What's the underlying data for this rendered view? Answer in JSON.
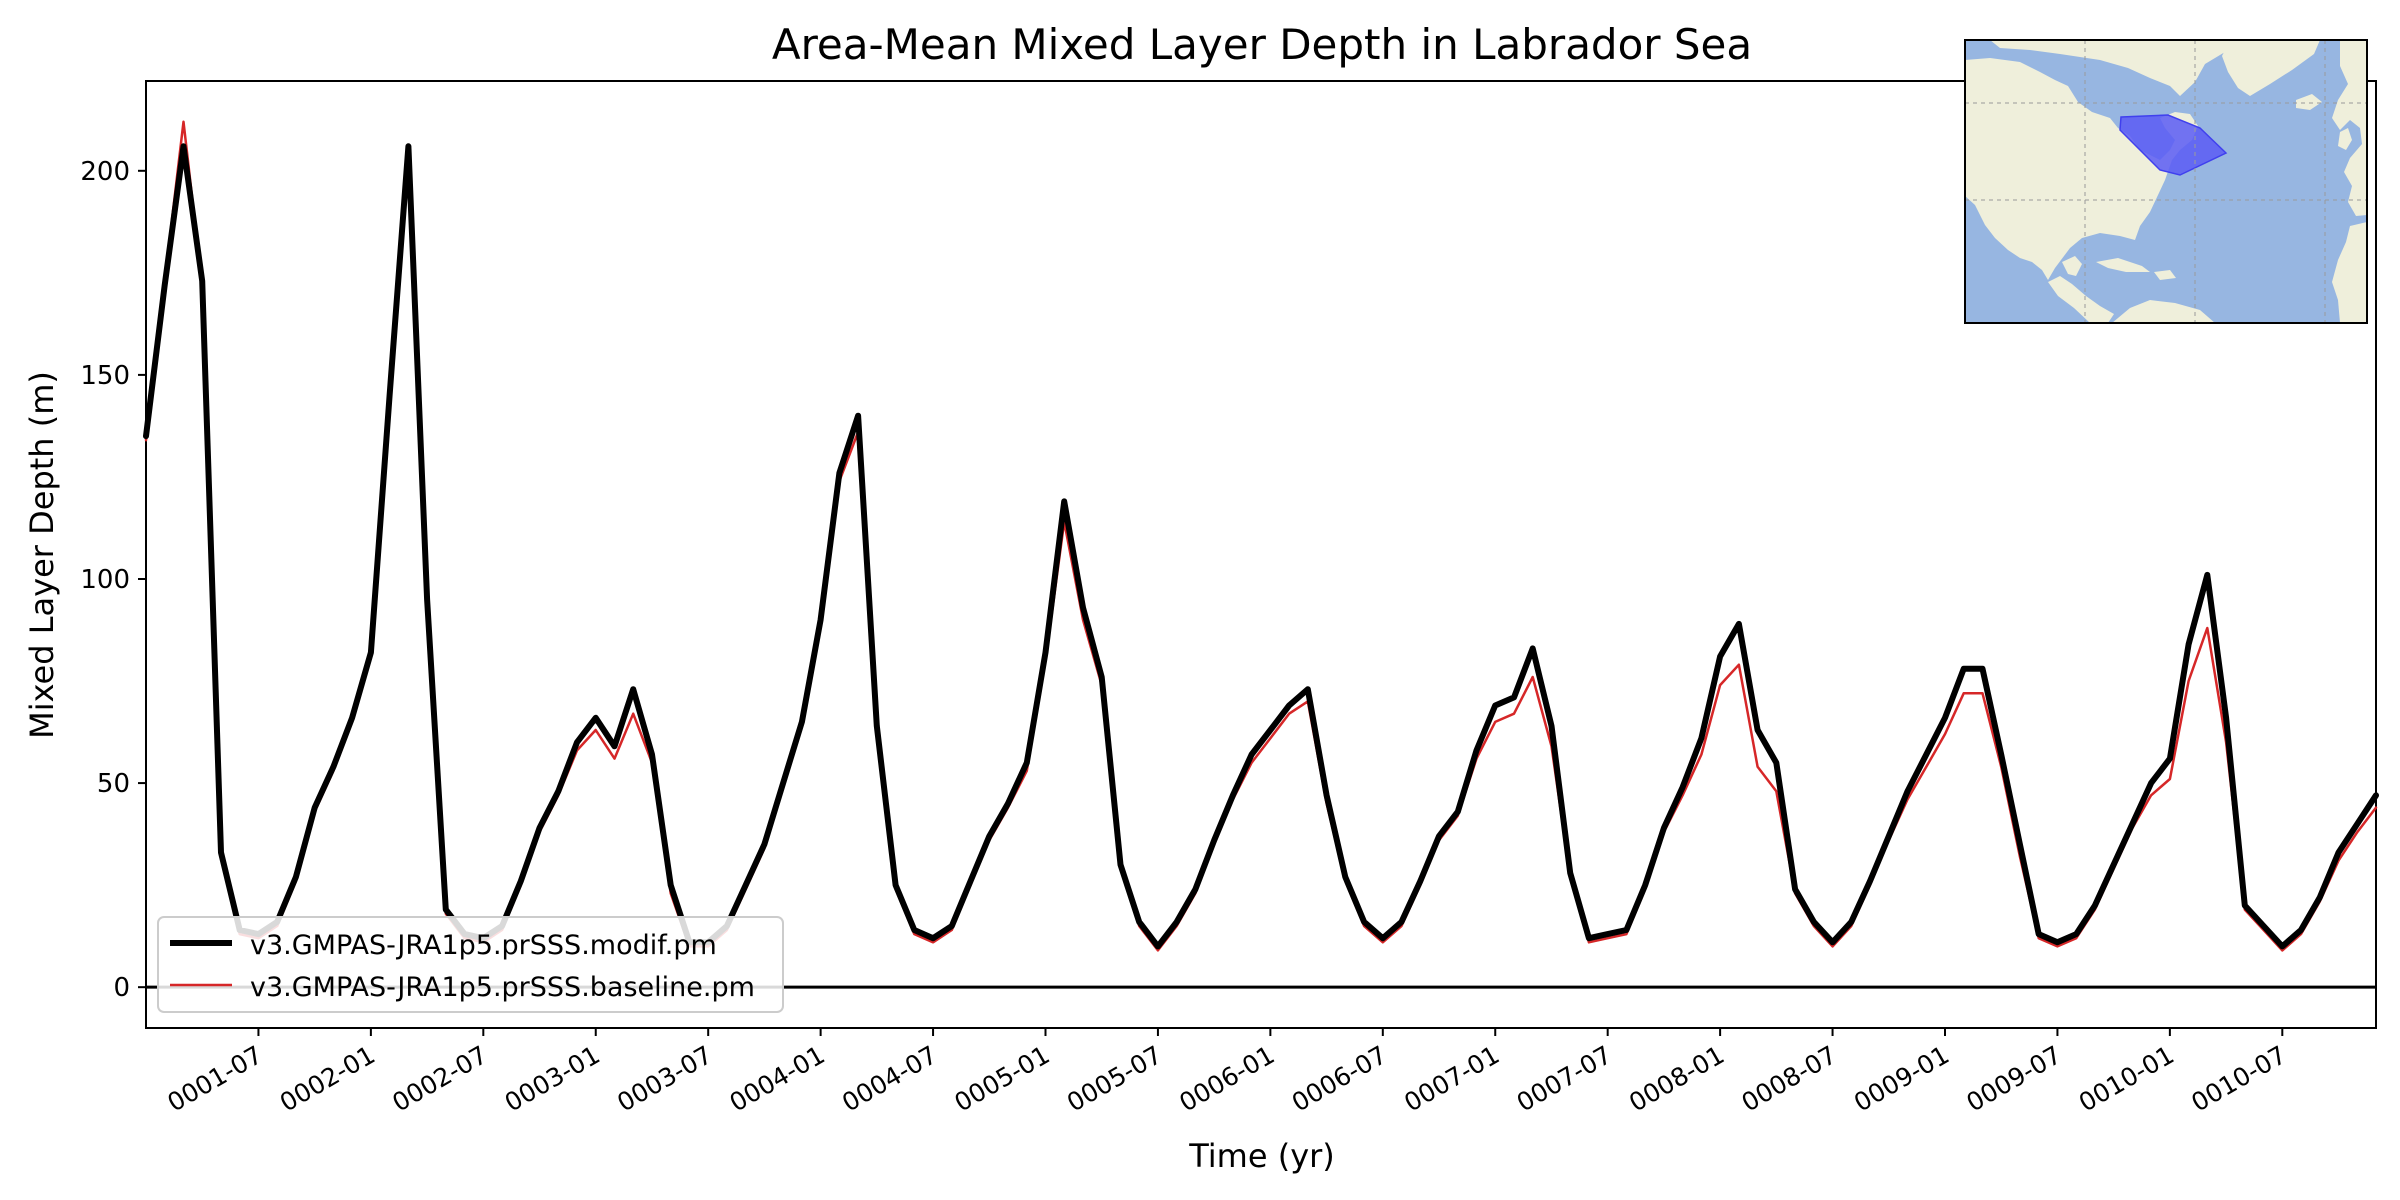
{
  "chart_data": {
    "type": "line",
    "title": "Area-Mean Mixed Layer Depth in Labrador Sea",
    "xlabel": "Time (yr)",
    "ylabel": "Mixed Layer Depth (m)",
    "x_start": "0001-01",
    "x_step": "1 month",
    "xlim": [
      "0001-01",
      "0010-12"
    ],
    "ylim": [
      -10,
      222
    ],
    "yticks": [
      0,
      50,
      100,
      150,
      200
    ],
    "xtick_labels": [
      "0001-07",
      "0002-01",
      "0002-07",
      "0003-01",
      "0003-07",
      "0004-01",
      "0004-07",
      "0005-01",
      "0005-07",
      "0006-01",
      "0006-07",
      "0007-01",
      "0007-07",
      "0008-01",
      "0008-07",
      "0009-01",
      "0009-07",
      "0010-01",
      "0010-07"
    ],
    "zero_line": true,
    "grid": false,
    "legend_position": "lower left",
    "series": [
      {
        "name": "v3.GMPAS-JRA1p5.prSSS.modif.pm",
        "color": "#000000",
        "values": [
          135,
          172,
          206,
          173,
          33,
          14,
          13,
          16,
          27,
          44,
          54,
          66,
          82,
          145,
          206,
          95,
          19,
          13,
          12,
          15,
          26,
          39,
          48,
          60,
          66,
          59,
          73,
          57,
          25,
          11,
          11,
          15,
          25,
          35,
          50,
          65,
          90,
          126,
          140,
          64,
          25,
          14,
          12,
          15,
          26,
          37,
          45,
          55,
          82,
          119,
          93,
          76,
          30,
          16,
          10,
          16,
          24,
          36,
          47,
          57,
          63,
          69,
          73,
          47,
          27,
          16,
          12,
          16,
          26,
          37,
          43,
          58,
          69,
          71,
          83,
          64,
          28,
          12,
          13,
          14,
          25,
          39,
          49,
          61,
          81,
          89,
          63,
          55,
          24,
          16,
          11,
          16,
          26,
          37,
          48,
          57,
          66,
          78,
          78,
          57,
          35,
          13,
          11,
          13,
          20,
          30,
          40,
          50,
          56,
          84,
          101,
          66,
          20,
          15,
          10,
          14,
          22,
          33,
          40,
          47
        ]
      },
      {
        "name": "v3.GMPAS-JRA1p5.prSSS.baseline.pm",
        "color": "#d62728",
        "values": [
          134,
          173,
          212,
          172,
          32,
          13,
          12,
          15,
          26,
          43,
          53,
          65,
          81,
          143,
          201,
          93,
          18,
          12,
          11,
          14,
          25,
          38,
          47,
          58,
          63,
          56,
          67,
          55,
          23,
          10,
          10,
          14,
          24,
          34,
          49,
          64,
          89,
          124,
          136,
          62,
          24,
          13,
          11,
          14,
          25,
          36,
          44,
          53,
          80,
          114,
          90,
          74,
          29,
          15,
          9,
          15,
          23,
          35,
          46,
          55,
          61,
          67,
          70,
          45,
          26,
          15,
          11,
          15,
          25,
          36,
          42,
          56,
          65,
          67,
          76,
          59,
          27,
          11,
          12,
          13,
          24,
          38,
          47,
          57,
          74,
          79,
          54,
          48,
          23,
          15,
          10,
          15,
          25,
          36,
          46,
          54,
          62,
          72,
          72,
          54,
          32,
          12,
          10,
          12,
          19,
          29,
          39,
          47,
          51,
          75,
          88,
          60,
          19,
          14,
          9,
          13,
          21,
          31,
          38,
          44
        ]
      }
    ]
  },
  "inset_map": {
    "ocean_color": "#97b6e1",
    "land_color": "#efefdb",
    "region_color": "#5a5cf5"
  }
}
